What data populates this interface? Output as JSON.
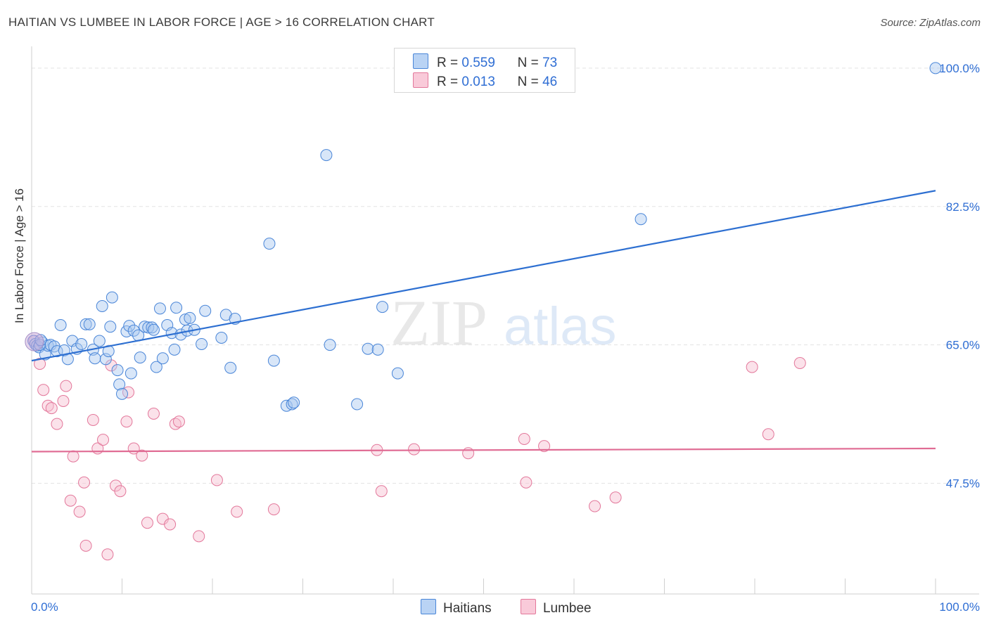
{
  "title": "HAITIAN VS LUMBEE IN LABOR FORCE | AGE > 16 CORRELATION CHART",
  "source": "Source: ZipAtlas.com",
  "watermark": {
    "zip": "ZIP",
    "atlas": "atlas"
  },
  "legend": {
    "r_label": "R =",
    "n_label": "N =",
    "rows": [
      {
        "r": "0.559",
        "n": "73"
      },
      {
        "r": "0.013",
        "n": "46"
      }
    ]
  },
  "colors": {
    "haitians_fill": "#a9c8f0",
    "haitians_stroke": "#4a86d8",
    "haitians_line": "#2d6fd1",
    "lumbee_fill": "#f7bfd0",
    "lumbee_stroke": "#e3789b",
    "lumbee_line": "#e06c94",
    "axis_label": "#2f6ed4"
  },
  "chart_data": {
    "type": "scatter",
    "xlabel": "In Labor Force | Age > 16",
    "x_tick_labels": [
      "0.0%",
      "100.0%"
    ],
    "y_tick_labels": [
      "100.0%",
      "82.5%",
      "65.0%",
      "47.5%"
    ],
    "y_ticks": [
      100.0,
      82.5,
      65.0,
      47.5
    ],
    "xlim": [
      0,
      100
    ],
    "ylim": [
      33.5,
      101.5
    ],
    "grid": true,
    "legend_position": "bottom-center",
    "series": [
      {
        "name": "Haitians",
        "trend": {
          "x0": 0,
          "y0": 63.0,
          "x1": 100,
          "y1": 84.5
        },
        "points": [
          [
            0.2,
            65.5
          ],
          [
            0.4,
            65.1
          ],
          [
            0.6,
            64.9
          ],
          [
            0.8,
            64.7
          ],
          [
            1.2,
            65.3
          ],
          [
            1.5,
            63.8
          ],
          [
            1.8,
            64.9
          ],
          [
            2.1,
            65.0
          ],
          [
            2.5,
            64.8
          ],
          [
            2.8,
            64.2
          ],
          [
            3.2,
            67.5
          ],
          [
            3.6,
            64.3
          ],
          [
            4.0,
            63.2
          ],
          [
            4.5,
            65.5
          ],
          [
            5.0,
            64.5
          ],
          [
            5.5,
            65.1
          ],
          [
            6.0,
            67.6
          ],
          [
            6.4,
            67.6
          ],
          [
            6.8,
            64.4
          ],
          [
            7.0,
            63.3
          ],
          [
            7.5,
            65.5
          ],
          [
            7.8,
            69.9
          ],
          [
            8.2,
            63.2
          ],
          [
            8.5,
            64.2
          ],
          [
            8.7,
            67.3
          ],
          [
            8.9,
            71.0
          ],
          [
            9.5,
            61.8
          ],
          [
            9.7,
            60.0
          ],
          [
            10.0,
            58.8
          ],
          [
            10.5,
            66.7
          ],
          [
            10.8,
            67.4
          ],
          [
            11.0,
            61.4
          ],
          [
            11.3,
            66.8
          ],
          [
            11.8,
            66.2
          ],
          [
            12.0,
            63.4
          ],
          [
            12.5,
            67.3
          ],
          [
            12.9,
            67.2
          ],
          [
            13.3,
            67.2
          ],
          [
            13.5,
            66.9
          ],
          [
            13.8,
            62.2
          ],
          [
            14.2,
            69.6
          ],
          [
            14.5,
            63.3
          ],
          [
            15.0,
            67.5
          ],
          [
            15.5,
            66.5
          ],
          [
            15.8,
            64.4
          ],
          [
            16.0,
            69.7
          ],
          [
            16.5,
            66.3
          ],
          [
            17.0,
            68.2
          ],
          [
            17.2,
            66.8
          ],
          [
            17.5,
            68.4
          ],
          [
            18.0,
            66.9
          ],
          [
            18.8,
            65.1
          ],
          [
            19.2,
            69.3
          ],
          [
            21.0,
            65.9
          ],
          [
            21.5,
            68.8
          ],
          [
            22.0,
            62.1
          ],
          [
            22.5,
            68.3
          ],
          [
            26.3,
            77.8
          ],
          [
            26.8,
            63.0
          ],
          [
            28.2,
            57.3
          ],
          [
            28.8,
            57.5
          ],
          [
            29.0,
            57.7
          ],
          [
            32.6,
            89.0
          ],
          [
            33.0,
            65.0
          ],
          [
            36.0,
            57.5
          ],
          [
            37.2,
            64.5
          ],
          [
            38.3,
            64.4
          ],
          [
            38.8,
            69.8
          ],
          [
            40.5,
            61.4
          ],
          [
            67.4,
            80.9
          ],
          [
            100.0,
            100.0
          ],
          [
            0.9,
            65.0
          ],
          [
            1.0,
            65.6
          ]
        ]
      },
      {
        "name": "Lumbee",
        "trend": {
          "x0": 0,
          "y0": 51.5,
          "x1": 100,
          "y1": 51.9
        },
        "points": [
          [
            0.9,
            62.6
          ],
          [
            1.3,
            59.3
          ],
          [
            1.8,
            57.3
          ],
          [
            2.2,
            57.0
          ],
          [
            2.8,
            55.0
          ],
          [
            3.5,
            57.9
          ],
          [
            3.8,
            59.8
          ],
          [
            4.3,
            45.3
          ],
          [
            4.6,
            50.9
          ],
          [
            5.3,
            43.9
          ],
          [
            5.8,
            47.6
          ],
          [
            6.0,
            39.6
          ],
          [
            6.8,
            55.5
          ],
          [
            7.3,
            51.9
          ],
          [
            7.9,
            53.0
          ],
          [
            8.4,
            38.5
          ],
          [
            8.8,
            62.4
          ],
          [
            9.3,
            47.2
          ],
          [
            9.8,
            46.5
          ],
          [
            10.5,
            55.3
          ],
          [
            10.7,
            59.0
          ],
          [
            11.3,
            51.9
          ],
          [
            12.2,
            51.0
          ],
          [
            12.8,
            42.5
          ],
          [
            13.5,
            56.3
          ],
          [
            14.5,
            43.0
          ],
          [
            15.3,
            42.3
          ],
          [
            15.9,
            55.0
          ],
          [
            16.3,
            55.3
          ],
          [
            18.5,
            40.8
          ],
          [
            20.5,
            47.9
          ],
          [
            22.7,
            43.9
          ],
          [
            26.8,
            44.2
          ],
          [
            38.2,
            51.7
          ],
          [
            38.7,
            46.5
          ],
          [
            42.3,
            51.8
          ],
          [
            48.3,
            51.3
          ],
          [
            54.5,
            53.1
          ],
          [
            54.7,
            47.6
          ],
          [
            56.7,
            52.2
          ],
          [
            62.3,
            44.6
          ],
          [
            64.6,
            45.7
          ],
          [
            79.7,
            62.2
          ],
          [
            81.5,
            53.7
          ],
          [
            85.0,
            62.7
          ],
          [
            0.3,
            65.5
          ]
        ]
      }
    ]
  }
}
